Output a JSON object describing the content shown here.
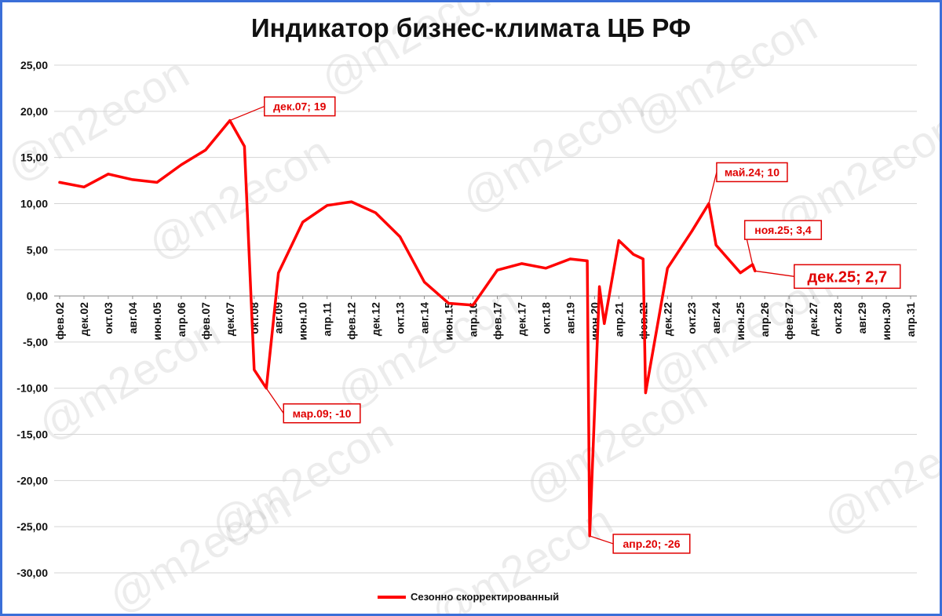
{
  "watermark": "@m2econ",
  "chart_data": {
    "type": "line",
    "title": "Индикатор бизнес-климата ЦБ РФ",
    "ylim": [
      -30,
      25
    ],
    "yticks": [
      "25,00",
      "20,00",
      "15,00",
      "10,00",
      "5,00",
      "0,00",
      "-5,00",
      "-10,00",
      "-15,00",
      "-20,00",
      "-25,00",
      "-30,00"
    ],
    "ytick_values": [
      25,
      20,
      15,
      10,
      5,
      0,
      -5,
      -10,
      -15,
      -20,
      -25,
      -30
    ],
    "xtick_labels": [
      "фев.02",
      "дек.02",
      "окт.03",
      "авг.04",
      "июн.05",
      "апр.06",
      "фев.07",
      "дек.07",
      "окт.08",
      "авг.09",
      "июн.10",
      "апр.11",
      "фев.12",
      "дек.12",
      "окт.13",
      "авг.14",
      "июн.15",
      "апр.16",
      "фев.17",
      "дек.17",
      "окт.18",
      "авг.19",
      "июн.20",
      "апр.21",
      "фев.22",
      "дек.22",
      "окт.23",
      "авг.24",
      "июн.25",
      "апр.26",
      "фев.27",
      "дек.27",
      "окт.28",
      "авг.29",
      "июн.30",
      "апр.31"
    ],
    "grid": true,
    "legend_position": "bottom",
    "series": [
      {
        "name": "Сезонно скорректированный",
        "color": "#ff0000",
        "x": [
          "фев.02",
          "дек.02",
          "окт.03",
          "авг.04",
          "июн.05",
          "апр.06",
          "фев.07",
          "дек.07",
          "июн.08",
          "окт.08",
          "мар.09",
          "авг.09",
          "июн.10",
          "апр.11",
          "фев.12",
          "дек.12",
          "окт.13",
          "авг.14",
          "июн.15",
          "апр.16",
          "фев.17",
          "дек.17",
          "окт.18",
          "авг.19",
          "мар.20",
          "апр.20",
          "авг.20",
          "окт.20",
          "апр.21",
          "окт.21",
          "фев.22",
          "мар.22",
          "дек.22",
          "окт.23",
          "май.24",
          "авг.24",
          "июн.25",
          "ноя.25",
          "дек.25"
        ],
        "values": [
          12.3,
          11.8,
          13.2,
          12.6,
          12.3,
          14.2,
          15.8,
          19.0,
          16.2,
          -8.0,
          -10.0,
          2.5,
          8.0,
          9.8,
          10.2,
          9.0,
          6.4,
          1.5,
          -0.8,
          -1.0,
          2.8,
          3.5,
          3.0,
          4.0,
          3.8,
          -26.0,
          1.0,
          -3.0,
          6.0,
          4.5,
          4.0,
          -10.5,
          3.0,
          7.0,
          10.0,
          5.5,
          2.5,
          3.4,
          2.7
        ]
      }
    ],
    "annotations": [
      {
        "label": "дек.07; 19",
        "x": "дек.07",
        "y": 19
      },
      {
        "label": "мар.09; -10",
        "x": "мар.09",
        "y": -10
      },
      {
        "label": "апр.20; -26",
        "x": "апр.20",
        "y": -26
      },
      {
        "label": "май.24; 10",
        "x": "май.24",
        "y": 10
      },
      {
        "label": "ноя.25; 3,4",
        "x": "ноя.25",
        "y": 3.4
      },
      {
        "label": "дек.25; 2,7",
        "x": "дек.25",
        "y": 2.7
      }
    ]
  }
}
